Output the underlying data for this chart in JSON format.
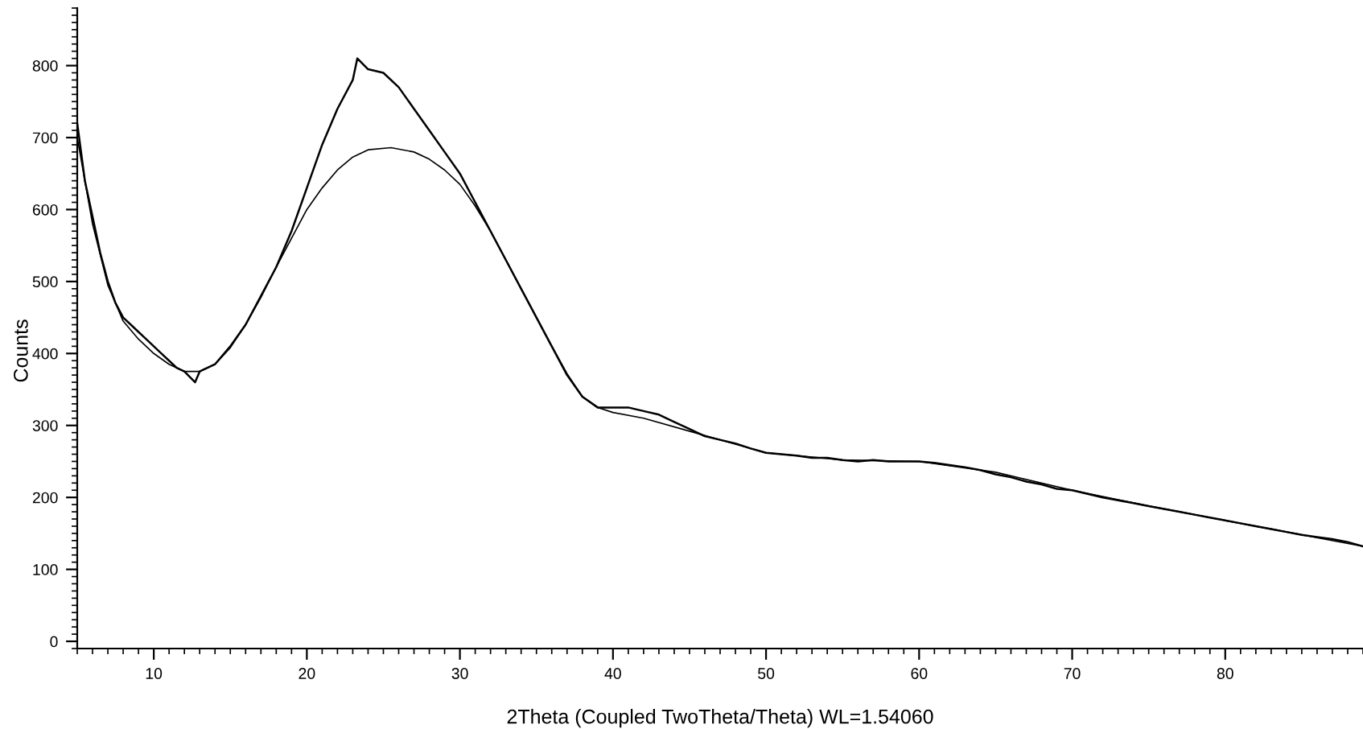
{
  "chart_data": {
    "type": "line",
    "xlabel": "2Theta (Coupled TwoTheta/Theta) WL=1.54060",
    "ylabel": "Counts",
    "xlim": [
      5,
      89
    ],
    "ylim": [
      -10,
      880
    ],
    "xticks": [
      10,
      20,
      30,
      40,
      50,
      60,
      70,
      80
    ],
    "yticks": [
      0,
      100,
      200,
      300,
      400,
      500,
      600,
      700,
      800
    ],
    "grid": false,
    "legend": false,
    "marker": "none",
    "line_style": "solid",
    "series": [
      {
        "color": "#000000",
        "x": [
          5,
          5.5,
          6,
          6.5,
          7,
          7.5,
          8,
          8.5,
          9,
          9.5,
          10,
          10.5,
          11,
          11.5,
          12,
          12.7,
          13,
          13.5,
          14,
          15,
          16,
          17,
          18,
          19,
          20,
          21,
          22,
          23,
          23.3,
          24,
          25,
          26,
          27,
          28,
          29,
          30,
          31,
          32,
          33,
          34,
          35,
          36,
          37,
          38,
          39,
          40,
          41,
          42,
          43,
          44,
          45,
          46,
          47,
          48,
          49,
          50,
          51,
          52,
          53,
          54,
          55,
          56,
          57,
          58,
          59,
          60,
          61,
          62,
          63,
          64,
          65,
          66,
          67,
          68,
          69,
          70,
          71,
          72,
          73,
          74,
          75,
          76,
          77,
          78,
          79,
          80,
          81,
          82,
          83,
          84,
          85,
          86,
          87,
          88,
          89
        ],
        "values": [
          720,
          640,
          590,
          540,
          500,
          470,
          450,
          440,
          430,
          420,
          410,
          400,
          390,
          380,
          375,
          360,
          375,
          380,
          385,
          410,
          440,
          480,
          520,
          570,
          630,
          690,
          740,
          780,
          810,
          795,
          790,
          770,
          740,
          710,
          680,
          650,
          610,
          570,
          530,
          490,
          450,
          410,
          370,
          340,
          325,
          325,
          325,
          320,
          315,
          305,
          295,
          285,
          280,
          275,
          268,
          262,
          260,
          258,
          255,
          255,
          252,
          250,
          252,
          250,
          250,
          250,
          248,
          245,
          242,
          238,
          232,
          228,
          222,
          218,
          212,
          210,
          205,
          200,
          196,
          192,
          188,
          184,
          180,
          176,
          172,
          168,
          164,
          160,
          156,
          152,
          148,
          145,
          142,
          138,
          132
        ]
      },
      {
        "color": "#000000",
        "x": [
          5,
          6,
          7,
          8,
          9,
          10,
          11,
          12,
          13,
          14,
          15,
          16,
          17,
          18,
          19,
          20,
          21,
          22,
          23,
          24,
          25.5,
          27,
          28,
          29,
          30,
          31,
          32,
          33,
          34,
          35,
          36,
          37,
          38,
          39,
          40,
          42,
          45,
          50,
          55,
          60,
          65,
          70,
          75,
          80,
          85,
          89
        ],
        "values": [
          700,
          580,
          495,
          445,
          420,
          400,
          385,
          375,
          375,
          385,
          408,
          440,
          478,
          520,
          560,
          600,
          630,
          655,
          673,
          683,
          686,
          680,
          670,
          655,
          635,
          605,
          570,
          530,
          490,
          450,
          410,
          372,
          340,
          325,
          318,
          310,
          292,
          262,
          252,
          250,
          235,
          210,
          188,
          168,
          148,
          132
        ]
      }
    ]
  }
}
